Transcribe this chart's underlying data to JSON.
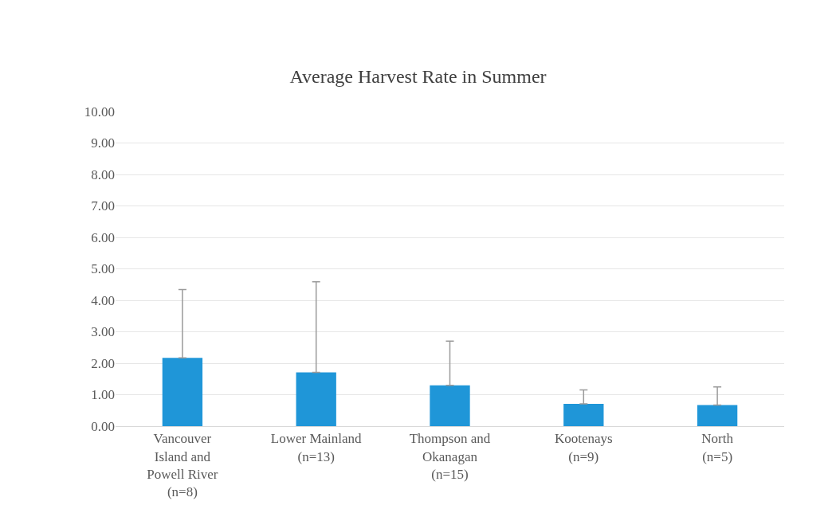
{
  "chart_data": {
    "type": "bar",
    "title": "Average Harvest Rate in Summer",
    "categories": [
      "Vancouver Island and Powell River (n=8)",
      "Lower Mainland (n=13)",
      "Thompson and Okanagan (n=15)",
      "Kootenays (n=9)",
      "North (n=5)"
    ],
    "values": [
      2.17,
      1.71,
      1.3,
      0.71,
      0.67
    ],
    "errors": [
      [
        2.17,
        4.34
      ],
      [
        1.71,
        4.59
      ],
      [
        1.3,
        2.7
      ],
      [
        0.71,
        1.15
      ],
      [
        0.67,
        1.25
      ]
    ],
    "color": "#1f96d8",
    "ylim": [
      0,
      10
    ],
    "yticks": [
      {
        "value": 0,
        "label": "0.00"
      },
      {
        "value": 1,
        "label": "1.00"
      },
      {
        "value": 2,
        "label": "2.00"
      },
      {
        "value": 3,
        "label": "3.00"
      },
      {
        "value": 4,
        "label": "4.00"
      },
      {
        "value": 5,
        "label": "5.00"
      },
      {
        "value": 6,
        "label": "6.00"
      },
      {
        "value": 7,
        "label": "7.00"
      },
      {
        "value": 8,
        "label": "8.00"
      },
      {
        "value": 9,
        "label": "9.00"
      },
      {
        "value": 10,
        "label": "10.00"
      }
    ],
    "grid": "y"
  }
}
